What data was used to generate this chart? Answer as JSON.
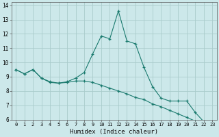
{
  "title": "",
  "xlabel": "Humidex (Indice chaleur)",
  "bg_color": "#cce8ea",
  "grid_color": "#aacccc",
  "line_color": "#1a7a6e",
  "x_curve1": [
    0,
    1,
    2,
    3,
    4,
    5,
    6,
    7,
    8,
    9,
    10,
    11,
    12,
    13,
    14,
    15,
    16,
    17,
    18,
    19,
    20,
    21,
    22,
    23
  ],
  "y_curve1": [
    9.5,
    9.2,
    9.5,
    8.9,
    8.6,
    8.55,
    8.65,
    8.9,
    9.3,
    10.6,
    11.85,
    11.65,
    13.6,
    11.5,
    11.3,
    9.65,
    8.3,
    7.5,
    7.3,
    7.3,
    7.3,
    6.5,
    5.85,
    5.85
  ],
  "x_curve2": [
    0,
    1,
    2,
    3,
    4,
    5,
    6,
    7,
    8,
    9,
    10,
    11,
    12,
    13,
    14,
    15,
    16,
    17,
    18,
    19,
    20,
    21,
    22,
    23
  ],
  "y_curve2": [
    9.5,
    9.2,
    9.5,
    8.9,
    8.65,
    8.55,
    8.6,
    8.7,
    8.7,
    8.6,
    8.4,
    8.2,
    8.0,
    7.8,
    7.55,
    7.4,
    7.1,
    6.9,
    6.65,
    6.4,
    6.15,
    5.9,
    5.65,
    5.85
  ],
  "ylim": [
    6,
    14.2
  ],
  "xlim": [
    -0.5,
    23.5
  ],
  "yticks": [
    6,
    7,
    8,
    9,
    10,
    11,
    12,
    13,
    14
  ],
  "xticks": [
    0,
    1,
    2,
    3,
    4,
    5,
    6,
    7,
    8,
    9,
    10,
    11,
    12,
    13,
    14,
    15,
    16,
    17,
    18,
    19,
    20,
    21,
    22,
    23
  ]
}
